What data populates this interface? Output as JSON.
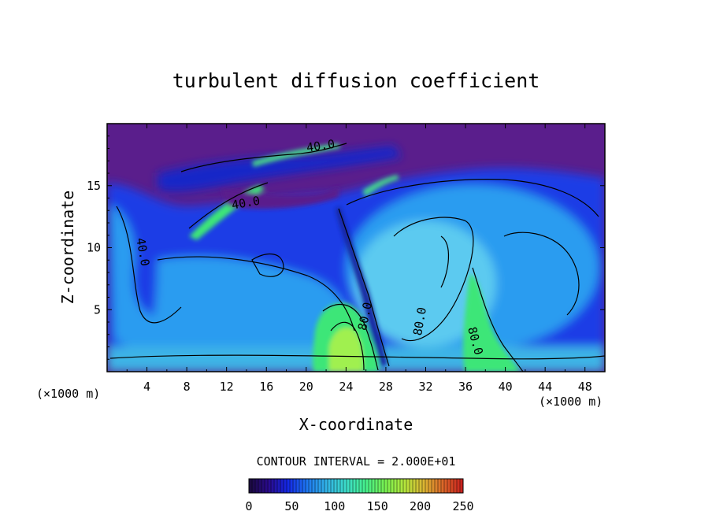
{
  "chart_data": {
    "type": "heatmap",
    "title": "turbulent diffusion coefficient",
    "xlabel": "X-coordinate",
    "ylabel": "Z-coordinate",
    "x_unit": "(×1000 m)",
    "z_unit": "(×1000 m)",
    "xlim": [
      0,
      50
    ],
    "ylim": [
      0,
      20
    ],
    "x_ticks": [
      4,
      8,
      12,
      16,
      20,
      24,
      28,
      32,
      36,
      40,
      44,
      48
    ],
    "y_ticks": [
      5,
      10,
      15
    ],
    "contour_interval_text": "CONTOUR INTERVAL = 2.000E+01",
    "contour_labels": [
      {
        "text": "40.0",
        "x": 3.2,
        "z": 9.6,
        "rotate": 80
      },
      {
        "text": "40.0",
        "x": 21.5,
        "z": 17.9,
        "rotate": -8
      },
      {
        "text": "40.0",
        "x": 14.0,
        "z": 13.3,
        "rotate": -10
      },
      {
        "text": "80.0",
        "x": 31.8,
        "z": 4.0,
        "rotate": -80
      },
      {
        "text": "80.0",
        "x": 36.6,
        "z": 2.4,
        "rotate": 75
      },
      {
        "text": "80.0",
        "x": 26.3,
        "z": 4.4,
        "rotate": -78
      }
    ],
    "colorbar": {
      "min": 0,
      "max": 250,
      "ticks": [
        0,
        50,
        100,
        150,
        200,
        250
      ],
      "colors": [
        "#1a0a3c",
        "#2a0a8c",
        "#1428e6",
        "#1e78f0",
        "#32b4e6",
        "#3cdcc8",
        "#46f08c",
        "#78f050",
        "#b4e63c",
        "#dcb432",
        "#dc6428",
        "#c81e1e"
      ]
    },
    "field_colors": {
      "background": "#5a1e8c",
      "low": "#1a3ce6",
      "mid": "#2c9cf0",
      "light": "#5ccaf0",
      "high": "#3ce678",
      "peak": "#a0f050"
    }
  }
}
